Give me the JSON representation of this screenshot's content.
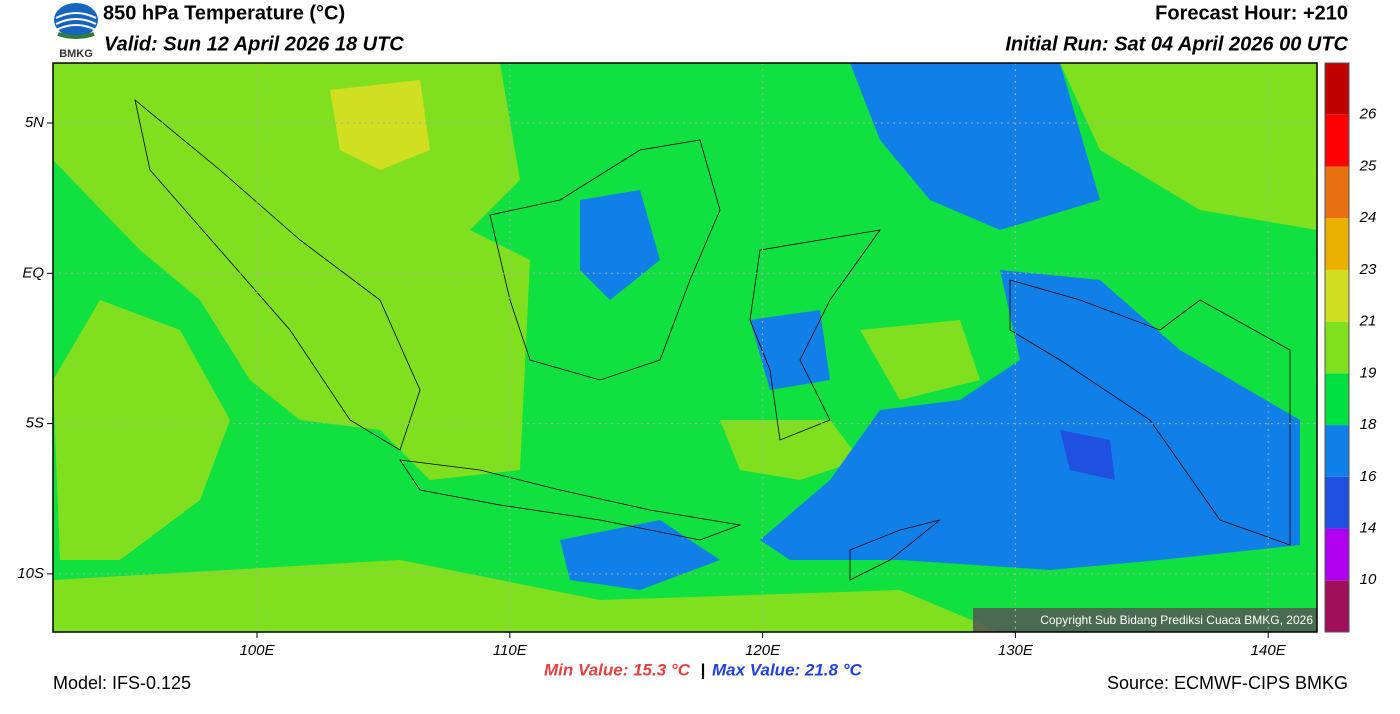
{
  "header": {
    "logo_text": "BMKG",
    "title": "850 hPa Temperature (°C)",
    "valid": "Valid: Sun 12 April 2026 18 UTC",
    "forecast_hour": "Forecast Hour: +210",
    "initial_run": "Initial Run: Sat 04 April 2026 00 UTC"
  },
  "map": {
    "lat_labels": [
      "5N",
      "EQ",
      "5S",
      "10S"
    ],
    "lon_labels": [
      "100E",
      "110E",
      "120E",
      "130E",
      "140E"
    ],
    "copyright": "Copyright Sub Bidang Prediksi Cuaca BMKG, 2026"
  },
  "colorbar": {
    "labels": [
      10,
      14,
      16,
      18,
      19,
      21,
      23,
      24,
      25,
      26
    ],
    "colors": [
      "#a0105a",
      "#b000f0",
      "#2050e0",
      "#1080e8",
      "#00e040",
      "#80e020",
      "#d0e020",
      "#e8b000",
      "#e87010",
      "#ff0000",
      "#c00000"
    ]
  },
  "footer": {
    "model": "Model: IFS-0.125",
    "min": "Min Value: 15.3 °C",
    "separator": "|",
    "max": "Max Value: 21.8 °C",
    "source": "Source: ECMWF-CIPS BMKG"
  }
}
